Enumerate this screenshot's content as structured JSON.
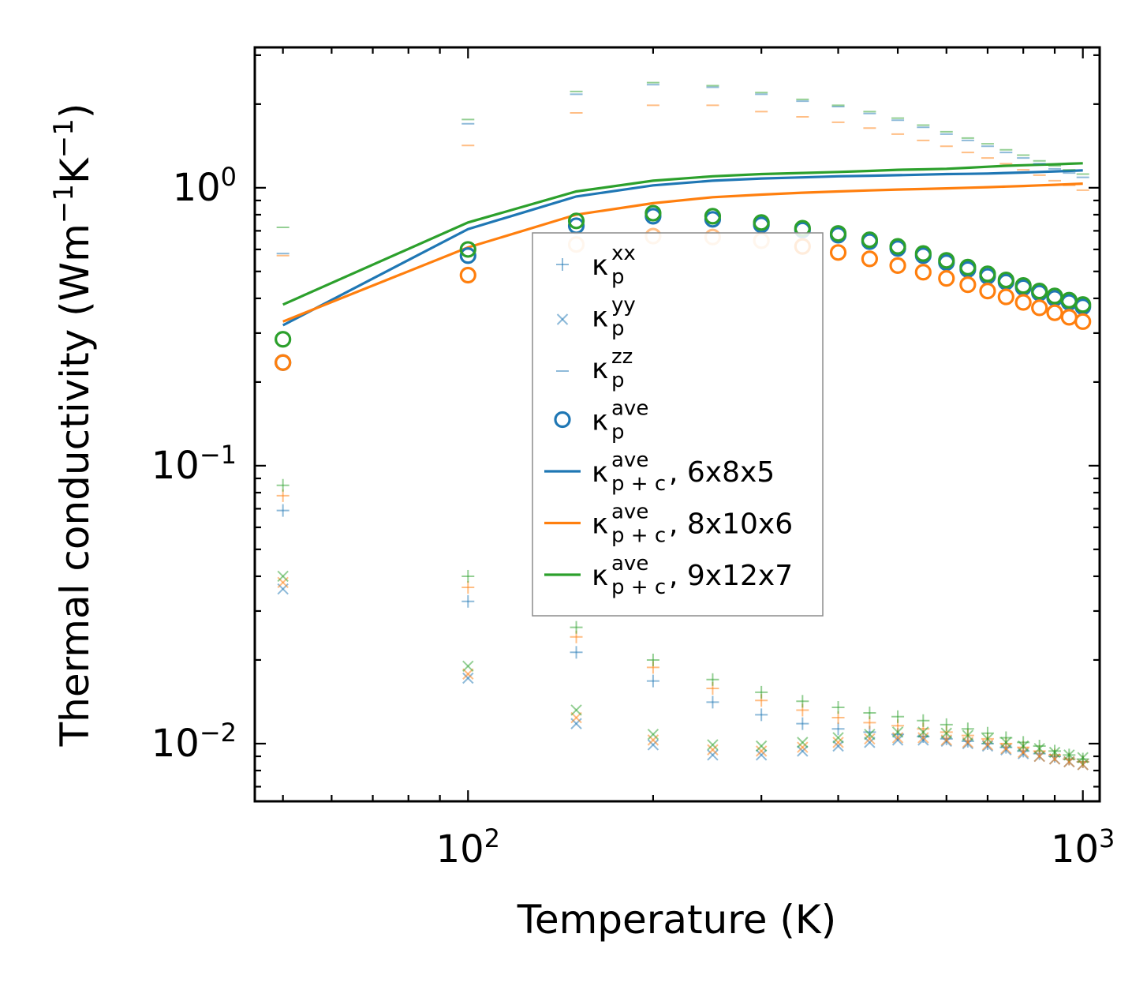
{
  "chart_data": {
    "type": "scatter",
    "xscale": "log",
    "yscale": "log",
    "xlabel": "Temperature (K)",
    "ylabel": {
      "prefix": "Thermal conductivity (Wm",
      "exp1": "−1",
      "mid": "K",
      "exp2": "−1",
      "suffix": ")"
    },
    "xlim": [
      45,
      1065
    ],
    "ylim": [
      0.0062,
      3.2
    ],
    "x_ticks": [
      {
        "value": 100,
        "base": "10",
        "exp": "2"
      },
      {
        "value": 1000,
        "base": "10",
        "exp": "3"
      }
    ],
    "y_ticks": [
      {
        "value": 0.01,
        "base": "10",
        "exp": "−2"
      },
      {
        "value": 0.1,
        "base": "10",
        "exp": "−1"
      },
      {
        "value": 1,
        "base": "10",
        "exp": "0"
      }
    ],
    "colors": {
      "c1": "#1f77b4",
      "c2": "#ff7f0e",
      "c3": "#2ca02c"
    },
    "temperatures": [
      50,
      100,
      150,
      200,
      250,
      300,
      350,
      400,
      450,
      500,
      550,
      600,
      650,
      700,
      750,
      800,
      850,
      900,
      950,
      1000
    ],
    "grids": [
      {
        "name": "6x8x5",
        "color": "#1f77b4",
        "kxx": [
          0.069,
          0.0325,
          0.0213,
          0.0168,
          0.0141,
          0.0127,
          0.0118,
          0.0113,
          0.011,
          0.0108,
          0.0106,
          0.0104,
          0.0102,
          0.01,
          0.0097,
          0.0094,
          0.0092,
          0.009,
          0.0088,
          0.0086
        ],
        "kyy": [
          0.036,
          0.0172,
          0.0118,
          0.0099,
          0.0091,
          0.0091,
          0.0094,
          0.0098,
          0.0101,
          0.0103,
          0.0103,
          0.0102,
          0.01,
          0.0098,
          0.0095,
          0.0092,
          0.009,
          0.0088,
          0.0086,
          0.0084
        ],
        "kzz": [
          0.58,
          1.7,
          2.17,
          2.35,
          2.3,
          2.17,
          2.05,
          1.96,
          1.85,
          1.75,
          1.65,
          1.56,
          1.48,
          1.41,
          1.34,
          1.28,
          1.22,
          1.17,
          1.13,
          1.09
        ],
        "kave": [
          0.235,
          0.57,
          0.73,
          0.79,
          0.77,
          0.735,
          0.705,
          0.675,
          0.64,
          0.605,
          0.57,
          0.538,
          0.508,
          0.48,
          0.458,
          0.437,
          0.418,
          0.4,
          0.387,
          0.373
        ],
        "kpc": [
          0.32,
          0.71,
          0.93,
          1.02,
          1.06,
          1.08,
          1.09,
          1.1,
          1.105,
          1.11,
          1.115,
          1.12,
          1.122,
          1.125,
          1.13,
          1.135,
          1.14,
          1.145,
          1.15,
          1.155
        ]
      },
      {
        "name": "8x10x6",
        "color": "#ff7f0e",
        "kxx": [
          0.078,
          0.0365,
          0.0242,
          0.0188,
          0.0158,
          0.0143,
          0.0132,
          0.0124,
          0.0119,
          0.0116,
          0.0113,
          0.011,
          0.0107,
          0.0104,
          0.01,
          0.0097,
          0.0094,
          0.0091,
          0.0088,
          0.0086
        ],
        "kyy": [
          0.038,
          0.0178,
          0.0124,
          0.0103,
          0.0095,
          0.0094,
          0.0097,
          0.0101,
          0.0104,
          0.0105,
          0.0105,
          0.0103,
          0.0101,
          0.0099,
          0.0096,
          0.0093,
          0.009,
          0.0088,
          0.0086,
          0.0084
        ],
        "kzz": [
          0.57,
          1.42,
          1.86,
          1.98,
          1.98,
          1.88,
          1.8,
          1.72,
          1.64,
          1.56,
          1.48,
          1.41,
          1.34,
          1.28,
          1.22,
          1.16,
          1.11,
          1.06,
          1.02,
          0.98
        ],
        "kave": [
          0.235,
          0.485,
          0.625,
          0.67,
          0.665,
          0.645,
          0.615,
          0.585,
          0.555,
          0.525,
          0.497,
          0.472,
          0.448,
          0.425,
          0.405,
          0.387,
          0.37,
          0.355,
          0.342,
          0.33
        ],
        "kpc": [
          0.33,
          0.61,
          0.8,
          0.88,
          0.925,
          0.945,
          0.96,
          0.97,
          0.978,
          0.985,
          0.99,
          0.995,
          1.0,
          1.005,
          1.01,
          1.015,
          1.02,
          1.025,
          1.03,
          1.035
        ]
      },
      {
        "name": "9x12x7",
        "color": "#2ca02c",
        "kxx": [
          0.085,
          0.04,
          0.0262,
          0.02,
          0.017,
          0.0153,
          0.0142,
          0.0135,
          0.0129,
          0.0125,
          0.0121,
          0.0117,
          0.0113,
          0.0109,
          0.0105,
          0.0101,
          0.0098,
          0.0094,
          0.0091,
          0.0088
        ],
        "kyy": [
          0.04,
          0.019,
          0.0132,
          0.0108,
          0.0099,
          0.0098,
          0.0101,
          0.0105,
          0.0108,
          0.011,
          0.011,
          0.0109,
          0.0107,
          0.0104,
          0.0101,
          0.0098,
          0.0096,
          0.0093,
          0.0091,
          0.0089
        ],
        "kzz": [
          0.72,
          1.76,
          2.22,
          2.39,
          2.33,
          2.2,
          2.08,
          1.98,
          1.88,
          1.78,
          1.68,
          1.59,
          1.51,
          1.44,
          1.37,
          1.31,
          1.25,
          1.2,
          1.16,
          1.12
        ],
        "kave": [
          0.285,
          0.6,
          0.76,
          0.81,
          0.79,
          0.75,
          0.715,
          0.685,
          0.65,
          0.615,
          0.58,
          0.548,
          0.518,
          0.49,
          0.466,
          0.445,
          0.425,
          0.408,
          0.394,
          0.38
        ],
        "kpc": [
          0.38,
          0.75,
          0.97,
          1.06,
          1.1,
          1.12,
          1.13,
          1.14,
          1.15,
          1.16,
          1.165,
          1.17,
          1.18,
          1.19,
          1.2,
          1.205,
          1.21,
          1.215,
          1.22,
          1.225
        ]
      }
    ],
    "legend": {
      "placement": "center",
      "entries": [
        {
          "kind": "plus",
          "base": "κ",
          "sup": "xx",
          "sub": "p",
          "tail": ""
        },
        {
          "kind": "cross",
          "base": "κ",
          "sup": "yy",
          "sub": "p",
          "tail": ""
        },
        {
          "kind": "dash",
          "base": "κ",
          "sup": "zz",
          "sub": "p",
          "tail": ""
        },
        {
          "kind": "circle",
          "base": "κ",
          "sup": "ave",
          "sub": "p",
          "tail": ""
        },
        {
          "kind": "line",
          "color": "#1f77b4",
          "base": "κ",
          "sup": "ave",
          "sub": "p + c",
          "tail": ", 6x8x5"
        },
        {
          "kind": "line",
          "color": "#ff7f0e",
          "base": "κ",
          "sup": "ave",
          "sub": "p + c",
          "tail": ", 8x10x6"
        },
        {
          "kind": "line",
          "color": "#2ca02c",
          "base": "κ",
          "sup": "ave",
          "sub": "p + c",
          "tail": ", 9x12x7"
        }
      ]
    }
  }
}
